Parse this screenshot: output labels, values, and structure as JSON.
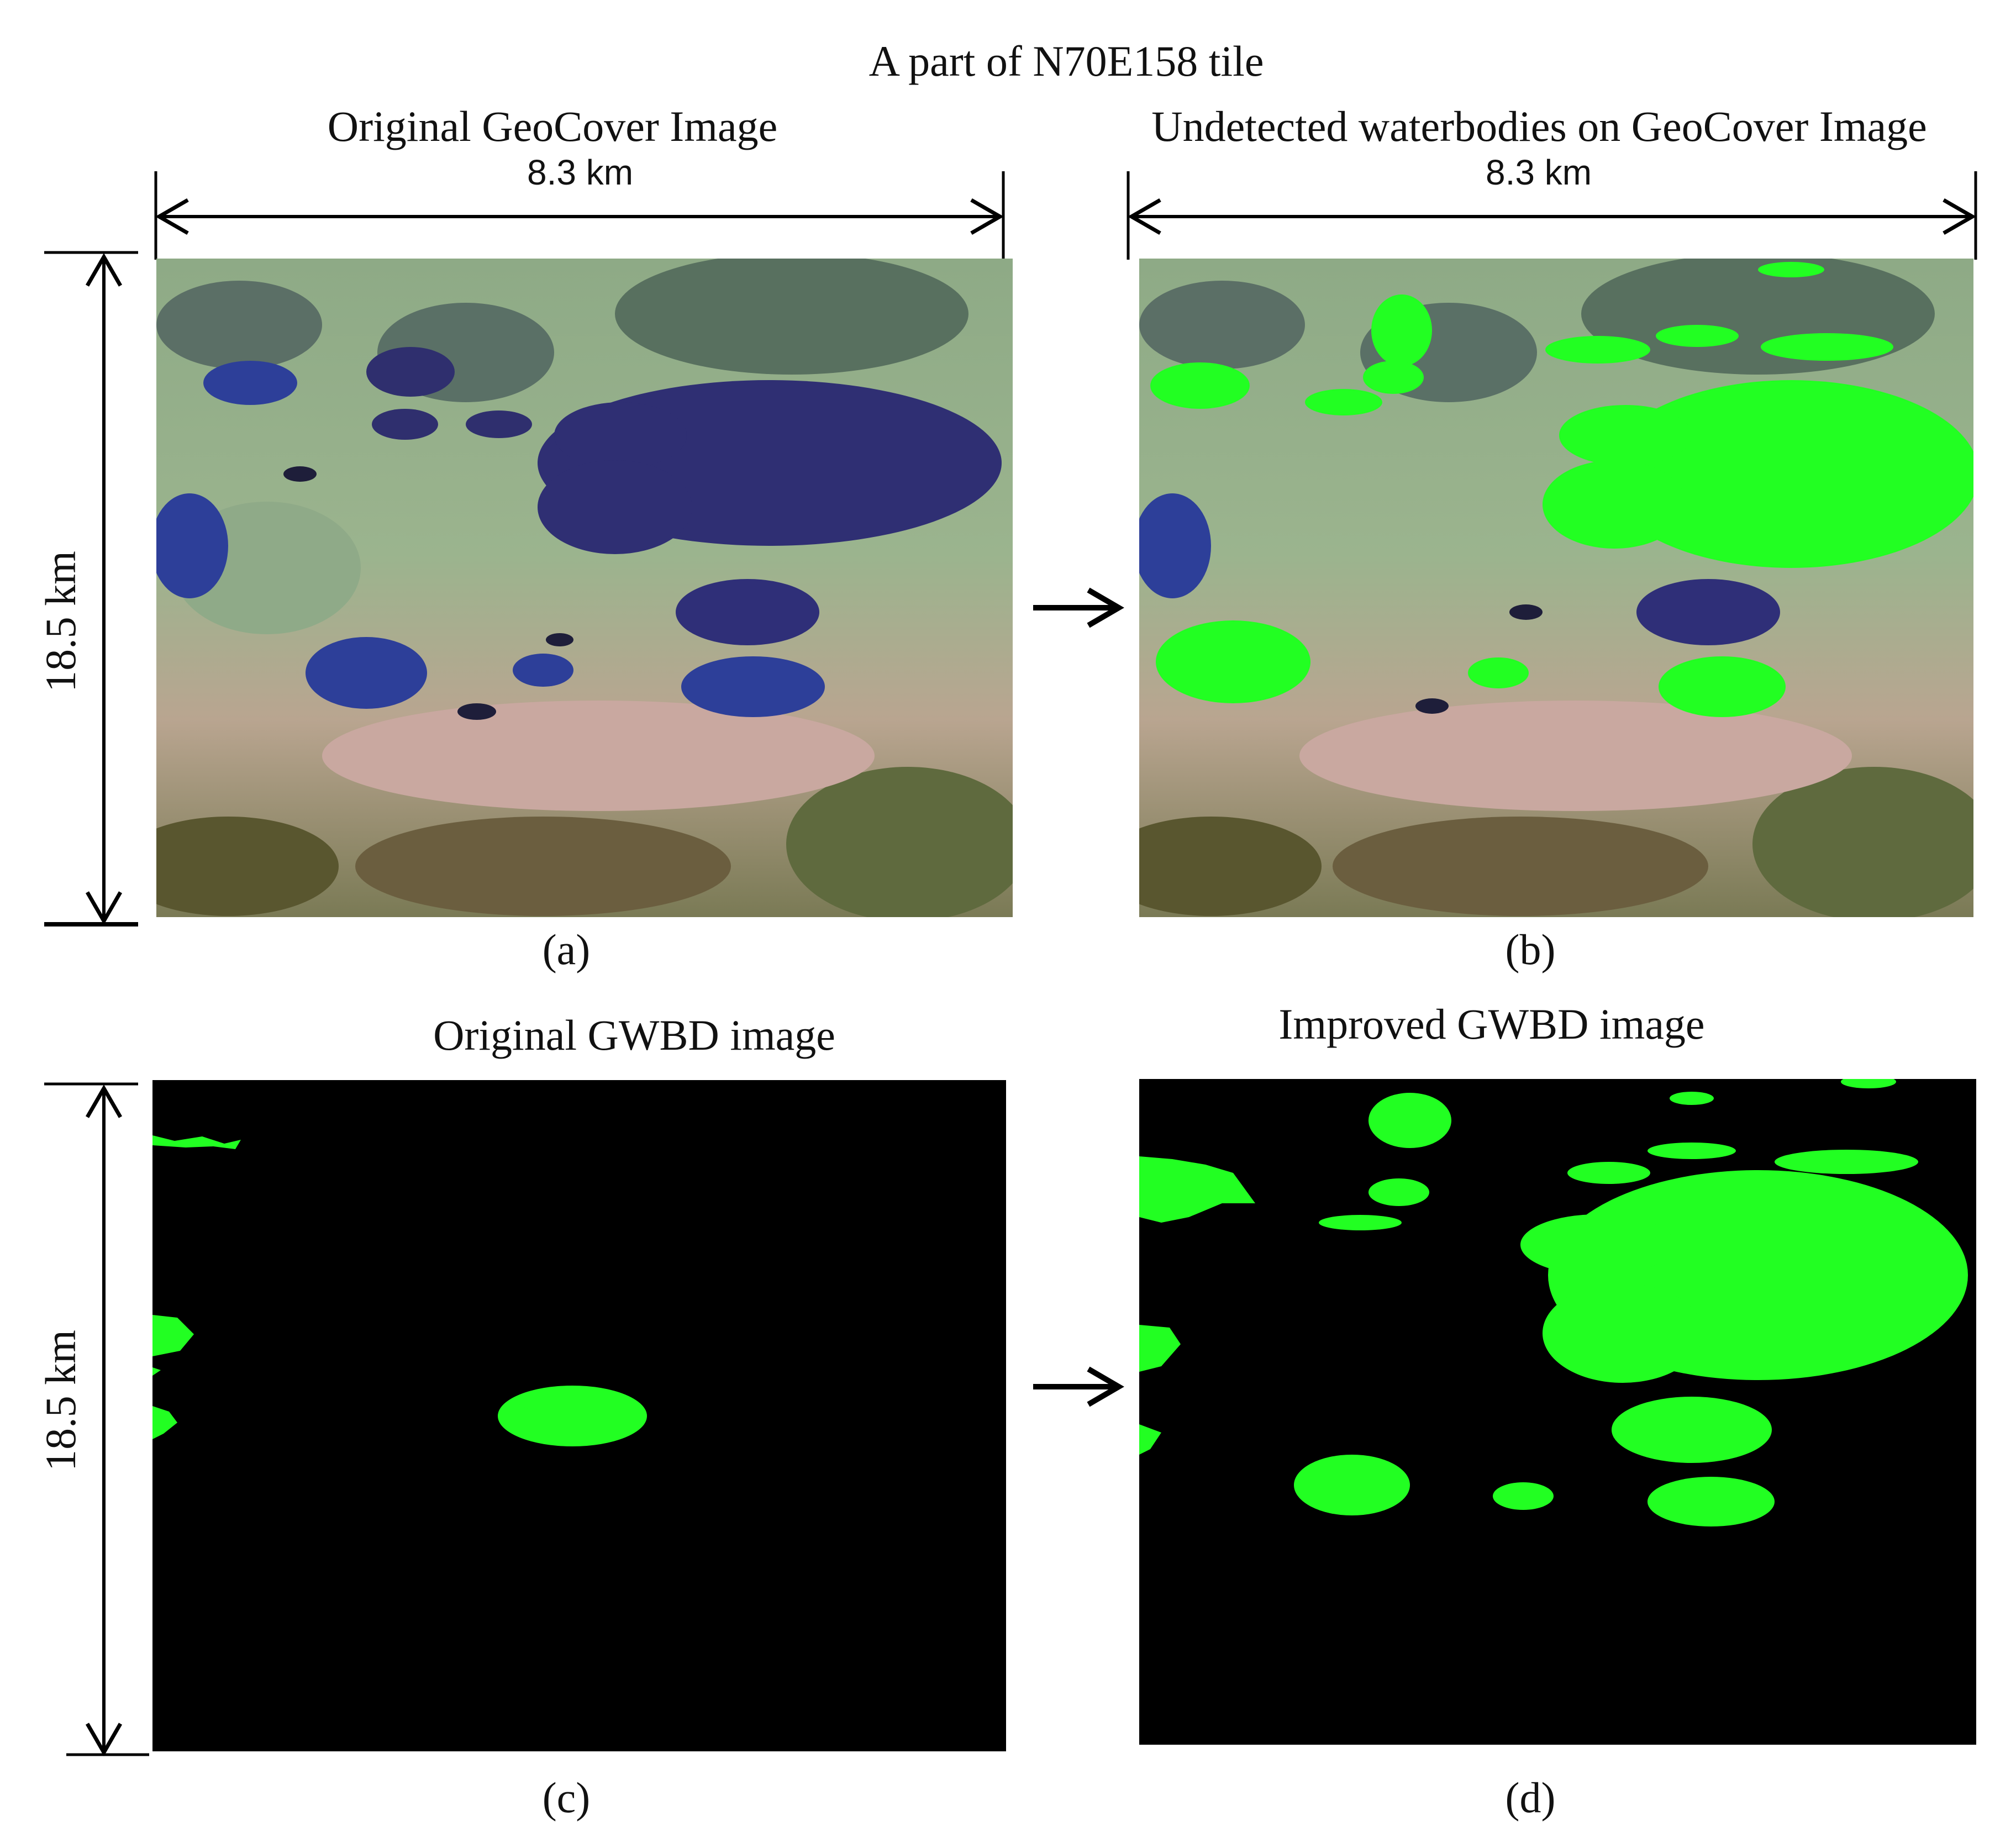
{
  "figure": {
    "title": "A part of N70E158 tile",
    "panel_a": {
      "heading": "Original GeoCover Image",
      "width_label": "8.3 km",
      "caption": "(a)"
    },
    "panel_b": {
      "heading": "Undetected waterbodies on GeoCover Image",
      "width_label": "8.3 km",
      "caption": "(b)"
    },
    "panel_c": {
      "heading": "Original GWBD image",
      "caption": "(c)"
    },
    "panel_d": {
      "heading": "Improved GWBD image",
      "caption": "(d)"
    },
    "height_label_top": "18.5 km",
    "height_label_bottom": "18.5 km"
  },
  "colors": {
    "highlight_green": "#22ff22",
    "water_blue": "#2a3a8a",
    "mask_background": "#000000",
    "terrain_green": "#7fa07a",
    "terrain_pink": "#c8a0a0"
  },
  "icons": [
    "arrow-right-icon",
    "double-arrow-horizontal-icon",
    "double-arrow-vertical-icon"
  ]
}
